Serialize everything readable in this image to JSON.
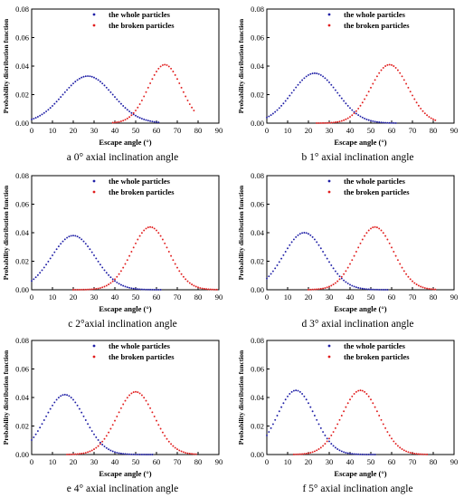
{
  "chart_data": [
    {
      "type": "scatter",
      "caption": "a 0° axial inclination angle",
      "xlabel": "Escape angle (°)",
      "ylabel": "Probability distribution function",
      "xlim": [
        0,
        90
      ],
      "ylim": [
        0,
        0.08
      ],
      "xticks": [
        "0",
        "10",
        "20",
        "30",
        "40",
        "50",
        "60",
        "70",
        "80",
        "90"
      ],
      "yticks": [
        "0.00",
        "0.02",
        "0.04",
        "0.06",
        "0.08"
      ],
      "legend_position": "top-right",
      "series": [
        {
          "name": "the whole particles",
          "color": "#1f1fa6",
          "mean": 27,
          "sd": 12,
          "peak": 0.033,
          "x_range": [
            0,
            61
          ]
        },
        {
          "name": "the broken particles",
          "color": "#e11d1d",
          "mean": 64,
          "sd": 8,
          "peak": 0.041,
          "x_range": [
            39,
            78
          ]
        }
      ]
    },
    {
      "type": "scatter",
      "caption": "b 1° axial inclination angle",
      "xlabel": "Escape angle (°)",
      "ylabel": "Probability distribution function",
      "xlim": [
        0,
        90
      ],
      "ylim": [
        0,
        0.08
      ],
      "xticks": [
        "0",
        "10",
        "20",
        "30",
        "40",
        "50",
        "60",
        "70",
        "80",
        "90"
      ],
      "yticks": [
        "0.00",
        "0.02",
        "0.04",
        "0.06",
        "0.08"
      ],
      "legend_position": "top-right",
      "series": [
        {
          "name": "the whole particles",
          "color": "#1f1fa6",
          "mean": 23,
          "sd": 11,
          "peak": 0.035,
          "x_range": [
            0,
            62
          ]
        },
        {
          "name": "the broken particles",
          "color": "#e11d1d",
          "mean": 59,
          "sd": 9,
          "peak": 0.041,
          "x_range": [
            24,
            81
          ]
        }
      ]
    },
    {
      "type": "scatter",
      "caption": "c 2°axial inclination angle",
      "xlabel": "Escape angle (°)",
      "ylabel": "Probability distribution function",
      "xlim": [
        0,
        90
      ],
      "ylim": [
        0,
        0.08
      ],
      "xticks": [
        "0",
        "10",
        "20",
        "30",
        "40",
        "50",
        "60",
        "70",
        "80",
        "90"
      ],
      "yticks": [
        "0.00",
        "0.02",
        "0.04",
        "0.06",
        "0.08"
      ],
      "legend_position": "top-right",
      "series": [
        {
          "name": "the whole particles",
          "color": "#1f1fa6",
          "mean": 20,
          "sd": 10.5,
          "peak": 0.038,
          "x_range": [
            0,
            62
          ]
        },
        {
          "name": "the broken particles",
          "color": "#e11d1d",
          "mean": 57,
          "sd": 9,
          "peak": 0.044,
          "x_range": [
            20,
            89
          ]
        }
      ]
    },
    {
      "type": "scatter",
      "caption": "d 3° axial inclination angle",
      "xlabel": "Escape angle (°)",
      "ylabel": "Probability distribution function",
      "xlim": [
        0,
        90
      ],
      "ylim": [
        0,
        0.08
      ],
      "xticks": [
        "0",
        "10",
        "20",
        "30",
        "40",
        "50",
        "60",
        "70",
        "80",
        "90"
      ],
      "yticks": [
        "0.00",
        "0.02",
        "0.04",
        "0.06",
        "0.08"
      ],
      "legend_position": "top-right",
      "series": [
        {
          "name": "the whole particles",
          "color": "#1f1fa6",
          "mean": 18,
          "sd": 10,
          "peak": 0.04,
          "x_range": [
            0,
            58
          ]
        },
        {
          "name": "the broken particles",
          "color": "#e11d1d",
          "mean": 52,
          "sd": 9,
          "peak": 0.044,
          "x_range": [
            20,
            81
          ]
        }
      ]
    },
    {
      "type": "scatter",
      "caption": "e 4° axial inclination angle",
      "xlabel": "Escape angle (°)",
      "ylabel": "Probability distribution function",
      "xlim": [
        0,
        90
      ],
      "ylim": [
        0,
        0.08
      ],
      "xticks": [
        "0",
        "10",
        "20",
        "30",
        "40",
        "50",
        "60",
        "70",
        "80",
        "90"
      ],
      "yticks": [
        "0.00",
        "0.02",
        "0.04",
        "0.06",
        "0.08"
      ],
      "legend_position": "top-right",
      "series": [
        {
          "name": "the whole particles",
          "color": "#1f1fa6",
          "mean": 16,
          "sd": 9.5,
          "peak": 0.042,
          "x_range": [
            0,
            58
          ]
        },
        {
          "name": "the broken particles",
          "color": "#e11d1d",
          "mean": 50,
          "sd": 9,
          "peak": 0.044,
          "x_range": [
            17,
            79
          ]
        }
      ]
    },
    {
      "type": "scatter",
      "caption": "f 5° axial inclination angle",
      "xlabel": "Escape angle (°)",
      "ylabel": "Probability distribution function",
      "xlim": [
        0,
        90
      ],
      "ylim": [
        0,
        0.08
      ],
      "xticks": [
        "0",
        "10",
        "20",
        "30",
        "40",
        "50",
        "60",
        "70",
        "80",
        "90"
      ],
      "yticks": [
        "0.00",
        "0.02",
        "0.04",
        "0.06",
        "0.08"
      ],
      "legend_position": "top-right",
      "series": [
        {
          "name": "the whole particles",
          "color": "#1f1fa6",
          "mean": 14,
          "sd": 9,
          "peak": 0.045,
          "x_range": [
            0,
            52
          ]
        },
        {
          "name": "the broken particles",
          "color": "#e11d1d",
          "mean": 45,
          "sd": 9,
          "peak": 0.045,
          "x_range": [
            13,
            77
          ]
        }
      ]
    }
  ]
}
